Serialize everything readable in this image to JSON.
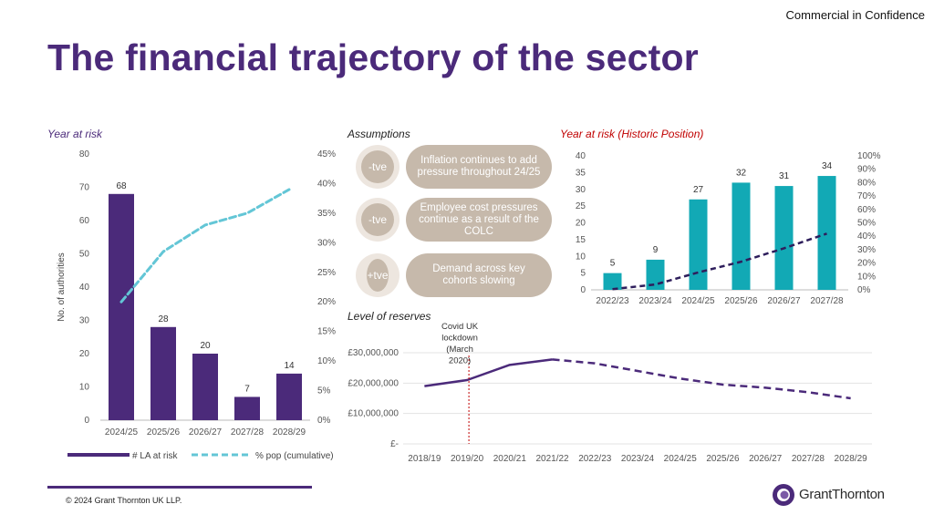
{
  "header": {
    "confidentiality": "Commercial in Confidence",
    "title": "The financial trajectory of the sector"
  },
  "sections": {
    "year_at_risk": "Year at risk",
    "assumptions": "Assumptions",
    "historic": "Year at risk (Historic Position)",
    "reserves": "Level of reserves"
  },
  "assumptions": [
    {
      "sign": "-tve",
      "text": "Inflation continues to add pressure throughout 24/25"
    },
    {
      "sign": "-tve",
      "text": "Employee cost pressures continue as a result of the COLC"
    },
    {
      "sign": "+tve",
      "text": "Demand across key cohorts slowing"
    }
  ],
  "footer": {
    "copyright": "© 2024 Grant Thornton UK LLP.",
    "logo": "GrantThornton"
  },
  "colors": {
    "purple": "#4b2a7a",
    "teal": "#12a9b5",
    "light_blue": "#63c6d6",
    "red": "#c00000",
    "beige": "#c6b9ab"
  },
  "chart_data": [
    {
      "type": "bar",
      "categories": [
        "2024/25",
        "2025/26",
        "2026/27",
        "2027/28",
        "2028/29"
      ],
      "series": [
        {
          "name": "# LA at risk",
          "values": [
            68,
            28,
            20,
            7,
            14
          ]
        },
        {
          "name": "% pop (cumulative)",
          "type": "line",
          "axis": "right",
          "values": [
            20,
            28.5,
            33,
            35,
            39
          ]
        }
      ],
      "ylabel": "No. of authorities",
      "ylim": [
        0,
        80
      ],
      "yticks": [
        "0",
        "10",
        "20",
        "30",
        "40",
        "50",
        "60",
        "70",
        "80"
      ],
      "y2lim": [
        0,
        45
      ],
      "y2ticks": [
        "0%",
        "5%",
        "10%",
        "15%",
        "20%",
        "25%",
        "30%",
        "35%",
        "40%",
        "45%"
      ],
      "legend": "bottom"
    },
    {
      "type": "bar",
      "categories": [
        "2022/23",
        "2023/24",
        "2024/25",
        "2025/26",
        "2026/27",
        "2027/28"
      ],
      "series": [
        {
          "values": [
            5,
            9,
            27,
            32,
            31,
            34
          ]
        },
        {
          "type": "line",
          "axis": "right",
          "values": [
            0.5,
            4,
            13,
            21,
            31,
            42
          ]
        }
      ],
      "ylim": [
        0,
        40
      ],
      "yticks": [
        "0",
        "5",
        "10",
        "15",
        "20",
        "25",
        "30",
        "35",
        "40"
      ],
      "y2lim": [
        0,
        100
      ],
      "y2ticks": [
        "0%",
        "10%",
        "20%",
        "30%",
        "40%",
        "50%",
        "60%",
        "70%",
        "80%",
        "90%",
        "100%"
      ]
    },
    {
      "type": "line",
      "categories": [
        "2018/19",
        "2019/20",
        "2020/21",
        "2021/22",
        "2022/23",
        "2023/24",
        "2024/25",
        "2025/26",
        "2026/27",
        "2027/28",
        "2028/29"
      ],
      "values": [
        19,
        21,
        26,
        27.8,
        26.5,
        24,
        21.5,
        19.5,
        18.5,
        17,
        15
      ],
      "unit": "£ million",
      "solid_until_index": 3,
      "ylim": [
        0,
        30
      ],
      "yticks": [
        "£-",
        "£10,000,000",
        "£20,000,000",
        "£30,000,000"
      ],
      "annotation": {
        "text": "Covid UK lockdown (March 2020)",
        "at": "2019/20"
      }
    }
  ]
}
